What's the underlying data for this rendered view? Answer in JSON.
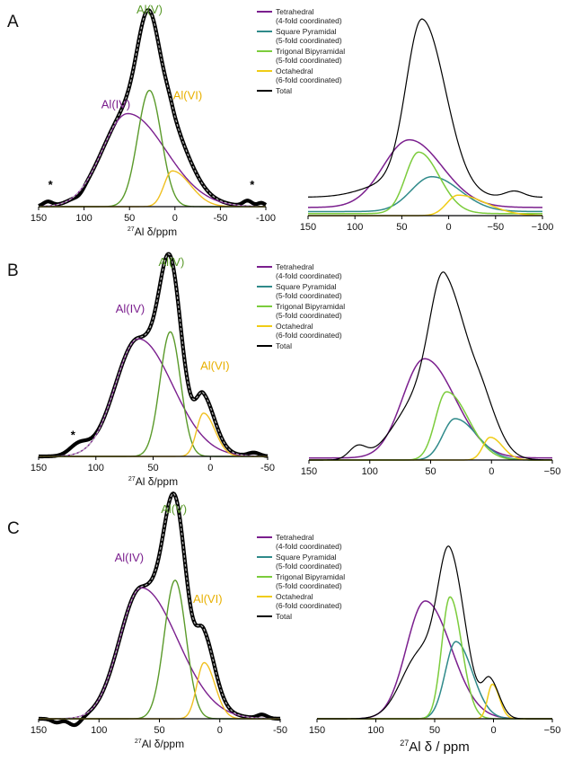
{
  "colors": {
    "tetrahedral": "#7b1f8e",
    "square_pyramidal": "#2f8a8a",
    "trigonal_bipyramidal": "#7ccc3c",
    "octahedral": "#f0cc16",
    "total": "#000000",
    "label_AlIV": "#7b1f8e",
    "label_AlV": "#5a9a2a",
    "label_AlVI": "#e8b000",
    "fit_green": "#5a9a2a",
    "fit_yellow": "#f0c020",
    "experimental": "#000000",
    "fit_envelope": "#bbbbbb"
  },
  "chart_data": [
    {
      "panel": "A",
      "side": "left",
      "type": "line",
      "panel_label": "A",
      "xlabel_prefix": "27",
      "xlabel_text": "Al δ/ppm",
      "x_reversed": true,
      "xlim": [
        150,
        -100
      ],
      "ticks": [
        150,
        100,
        50,
        0,
        -50,
        -100
      ],
      "tick_labels": [
        "150",
        "100",
        "50",
        "0",
        "-50",
        "-100"
      ],
      "annotations": [
        {
          "text": "Al(IV)",
          "x": 65,
          "y": 0.55,
          "color_key": "label_AlIV"
        },
        {
          "text": "Al(V)",
          "x": 28,
          "y": 1.08,
          "color_key": "label_AlV"
        },
        {
          "text": "Al(VI)",
          "x": -14,
          "y": 0.6,
          "color_key": "label_AlVI"
        },
        {
          "text": "*",
          "x": 137,
          "y": 0.1,
          "color_key": "experimental"
        },
        {
          "text": "*",
          "x": -85,
          "y": 0.1,
          "color_key": "experimental"
        }
      ],
      "components": [
        {
          "key": "AlIV",
          "color_key": "tetrahedral",
          "center": 52,
          "width_lo": 28,
          "width_hi": 42,
          "height": 0.52
        },
        {
          "key": "AlV",
          "color_key": "fit_green",
          "center": 28,
          "width_lo": 13,
          "width_hi": 13,
          "height": 0.65
        },
        {
          "key": "AlVI",
          "color_key": "fit_yellow",
          "center": 3,
          "width_lo": 9,
          "width_hi": 20,
          "height": 0.2
        }
      ],
      "baseline_ripple": [
        {
          "center": 140,
          "width": 5,
          "height": 0.025
        },
        {
          "center": 105,
          "width": 5,
          "height": -0.018
        },
        {
          "center": -80,
          "width": 5,
          "height": 0.03
        },
        {
          "center": -95,
          "width": 4,
          "height": 0.02
        }
      ],
      "ymax": 1.08
    },
    {
      "panel": "A",
      "side": "right",
      "type": "line",
      "x_reversed": true,
      "xlim": [
        150,
        -100
      ],
      "ticks": [
        150,
        100,
        50,
        0,
        -50,
        -100
      ],
      "tick_labels": [
        "150",
        "100",
        "50",
        "0",
        "−50",
        "−100"
      ],
      "legend": [
        "Tetrahedral",
        "(4-fold coordinated)",
        "Square Pyramidal",
        "(5-fold coordinated)",
        "Trigonal Bipyramidal",
        "(5-fold coordinated)",
        "Octahedral",
        "(6-fold coordinated)",
        "Total"
      ],
      "components": [
        {
          "key": "tet",
          "color_key": "tetrahedral",
          "center": 42,
          "width_lo": 28,
          "width_hi": 35,
          "height": 0.33,
          "floor": 0.04
        },
        {
          "key": "sq",
          "color_key": "square_pyramidal",
          "center": 18,
          "width_lo": 22,
          "width_hi": 30,
          "height": 0.17,
          "floor": 0.02
        },
        {
          "key": "tb",
          "color_key": "trigonal_bipyramidal",
          "center": 32,
          "width_lo": 14,
          "width_hi": 22,
          "height": 0.3,
          "floor": 0.01
        },
        {
          "key": "oct",
          "color_key": "octahedral",
          "center": -10,
          "width_lo": 12,
          "width_hi": 30,
          "height": 0.1,
          "floor": 0.0
        }
      ],
      "total_shape": [
        {
          "center": 28,
          "width_lo": 17,
          "width_hi": 25,
          "height": 0.83
        },
        {
          "center": 60,
          "width_lo": 30,
          "width_hi": 30,
          "height": 0.07
        },
        {
          "center": -70,
          "width_lo": 10,
          "width_hi": 10,
          "height": 0.03
        }
      ],
      "total_floor": 0.09,
      "ymax": 1.0
    },
    {
      "panel": "B",
      "side": "left",
      "type": "line",
      "panel_label": "B",
      "xlabel_prefix": "27",
      "xlabel_text": "Al δ/ppm",
      "x_reversed": true,
      "xlim": [
        150,
        -50
      ],
      "ticks": [
        150,
        100,
        50,
        0,
        -50
      ],
      "tick_labels": [
        "150",
        "100",
        "50",
        "0",
        "-50"
      ],
      "annotations": [
        {
          "text": "Al(IV)",
          "x": 70,
          "y": 0.83,
          "color_key": "label_AlIV"
        },
        {
          "text": "Al(V)",
          "x": 34,
          "y": 1.1,
          "color_key": "label_AlV"
        },
        {
          "text": "Al(VI)",
          "x": -4,
          "y": 0.5,
          "color_key": "label_AlVI"
        },
        {
          "text": "*",
          "x": 120,
          "y": 0.1,
          "color_key": "experimental"
        }
      ],
      "components": [
        {
          "key": "AlIV",
          "color_key": "tetrahedral",
          "center": 63,
          "width_lo": 20,
          "width_hi": 30,
          "height": 0.68
        },
        {
          "key": "AlV",
          "color_key": "fit_green",
          "center": 35,
          "width_lo": 9,
          "width_hi": 9,
          "height": 0.72
        },
        {
          "key": "AlVI",
          "color_key": "fit_yellow",
          "center": 6,
          "width_lo": 6,
          "width_hi": 10,
          "height": 0.25
        }
      ],
      "baseline_ripple": [
        {
          "center": 115,
          "width": 8,
          "height": 0.06
        },
        {
          "center": -38,
          "width": 5,
          "height": 0.02
        }
      ],
      "ymax": 1.08
    },
    {
      "panel": "B",
      "side": "right",
      "type": "line",
      "x_reversed": true,
      "xlim": [
        150,
        -50
      ],
      "ticks": [
        150,
        100,
        50,
        0,
        -50
      ],
      "tick_labels": [
        "150",
        "100",
        "50",
        "0",
        "−50"
      ],
      "legend": [
        "Tetrahedral",
        "(4-fold coordinated)",
        "Square Pyramidal",
        "(5-fold coordinated)",
        "Trigonal Bipyramidal",
        "(5-fold coordinated)",
        "Octahedral",
        "(6-fold coordinated)",
        "Total"
      ],
      "components": [
        {
          "key": "tet",
          "color_key": "tetrahedral",
          "center": 55,
          "width_lo": 18,
          "width_hi": 25,
          "height": 0.48,
          "floor": 0.01
        },
        {
          "key": "sq",
          "color_key": "square_pyramidal",
          "center": 30,
          "width_lo": 10,
          "width_hi": 18,
          "height": 0.2,
          "floor": 0.0
        },
        {
          "key": "tb",
          "color_key": "trigonal_bipyramidal",
          "center": 37,
          "width_lo": 9,
          "width_hi": 18,
          "height": 0.33,
          "floor": 0.0
        },
        {
          "key": "oct",
          "color_key": "octahedral",
          "center": 1,
          "width_lo": 6,
          "width_hi": 10,
          "height": 0.11,
          "floor": 0.0
        }
      ],
      "total_shape": [
        {
          "center": 38,
          "width_lo": 12,
          "width_hi": 22,
          "height": 0.75
        },
        {
          "center": 60,
          "width_lo": 20,
          "width_hi": 20,
          "height": 0.28
        },
        {
          "center": 110,
          "width_lo": 7,
          "width_hi": 7,
          "height": 0.06
        },
        {
          "center": 5,
          "width_lo": 9,
          "width_hi": 12,
          "height": 0.1
        }
      ],
      "total_floor": 0.0,
      "ymax": 1.0
    },
    {
      "panel": "C",
      "side": "left",
      "type": "line",
      "panel_label": "C",
      "xlabel_prefix": "27",
      "xlabel_text": "Al δ/ppm",
      "x_reversed": true,
      "xlim": [
        150,
        -50
      ],
      "ticks": [
        150,
        100,
        50,
        0,
        -50
      ],
      "tick_labels": [
        "150",
        "100",
        "50",
        "0",
        "-50"
      ],
      "annotations": [
        {
          "text": "Al(IV)",
          "x": 75,
          "y": 0.84,
          "color_key": "label_AlIV"
        },
        {
          "text": "Al(V)",
          "x": 38,
          "y": 1.1,
          "color_key": "label_AlV"
        },
        {
          "text": "Al(VI)",
          "x": 10,
          "y": 0.62,
          "color_key": "label_AlVI"
        }
      ],
      "components": [
        {
          "key": "AlIV",
          "color_key": "tetrahedral",
          "center": 65,
          "width_lo": 18,
          "width_hi": 30,
          "height": 0.7
        },
        {
          "key": "AlV",
          "color_key": "fit_green",
          "center": 37,
          "width_lo": 9,
          "width_hi": 9,
          "height": 0.74
        },
        {
          "key": "AlVI",
          "color_key": "fit_yellow",
          "center": 13,
          "width_lo": 6,
          "width_hi": 9,
          "height": 0.3
        }
      ],
      "baseline_ripple": [
        {
          "center": 135,
          "width": 4,
          "height": -0.02
        },
        {
          "center": 120,
          "width": 5,
          "height": -0.04
        },
        {
          "center": -35,
          "width": 4,
          "height": 0.02
        }
      ],
      "ymax": 1.08
    },
    {
      "panel": "C",
      "side": "right",
      "type": "line",
      "x_reversed": true,
      "xlim": [
        150,
        -50
      ],
      "ticks": [
        150,
        100,
        50,
        0,
        -50
      ],
      "tick_labels": [
        "150",
        "100",
        "50",
        "0",
        "−50"
      ],
      "xlabel_prefix": "27",
      "xlabel_text": "Al δ / ppm",
      "legend": [
        "Tetrahedral",
        "(4-fold coordinated)",
        "Square Pyramidal",
        "(5-fold coordinated)",
        "Trigonal Bipyramidal",
        "(5-fold coordinated)",
        "Octahedral",
        "(6-fold coordinated)",
        "Total"
      ],
      "components": [
        {
          "key": "tet",
          "color_key": "tetrahedral",
          "center": 58,
          "width_lo": 16,
          "width_hi": 22,
          "height": 0.58,
          "floor": 0.0
        },
        {
          "key": "sq",
          "color_key": "square_pyramidal",
          "center": 32,
          "width_lo": 9,
          "width_hi": 14,
          "height": 0.38,
          "floor": 0.0
        },
        {
          "key": "tb",
          "color_key": "trigonal_bipyramidal",
          "center": 37,
          "width_lo": 7,
          "width_hi": 10,
          "height": 0.6,
          "floor": 0.0
        },
        {
          "key": "oct",
          "color_key": "octahedral",
          "center": 1,
          "width_lo": 4,
          "width_hi": 6,
          "height": 0.17,
          "floor": 0.0
        }
      ],
      "total_shape": [
        {
          "center": 37,
          "width_lo": 10,
          "width_hi": 13,
          "height": 0.75
        },
        {
          "center": 62,
          "width_lo": 16,
          "width_hi": 16,
          "height": 0.32
        },
        {
          "center": 3,
          "width_lo": 6,
          "width_hi": 8,
          "height": 0.18
        }
      ],
      "total_floor": 0.0,
      "ymax": 1.0
    }
  ]
}
